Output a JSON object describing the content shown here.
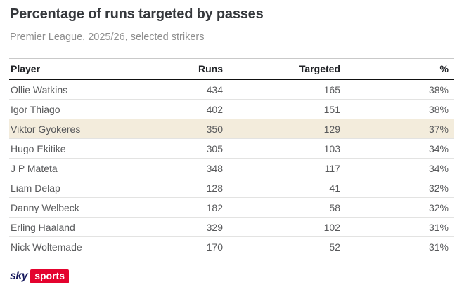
{
  "header": {
    "title": "Percentage of runs targeted by passes",
    "subtitle": "Premier League, 2025/26, selected strikers"
  },
  "chart_data": {
    "type": "table",
    "title": "Percentage of runs targeted by passes",
    "subtitle": "Premier League, 2025/26, selected strikers",
    "columns": [
      "Player",
      "Runs",
      "Targeted",
      "%"
    ],
    "rows": [
      {
        "player": "Ollie Watkins",
        "runs": 434,
        "targeted": 165,
        "pct": "38%",
        "highlighted": false
      },
      {
        "player": "Igor Thiago",
        "runs": 402,
        "targeted": 151,
        "pct": "38%",
        "highlighted": false
      },
      {
        "player": "Viktor Gyokeres",
        "runs": 350,
        "targeted": 129,
        "pct": "37%",
        "highlighted": true
      },
      {
        "player": "Hugo Ekitike",
        "runs": 305,
        "targeted": 103,
        "pct": "34%",
        "highlighted": false
      },
      {
        "player": "J P Mateta",
        "runs": 348,
        "targeted": 117,
        "pct": "34%",
        "highlighted": false
      },
      {
        "player": "Liam Delap",
        "runs": 128,
        "targeted": 41,
        "pct": "32%",
        "highlighted": false
      },
      {
        "player": "Danny Welbeck",
        "runs": 182,
        "targeted": 58,
        "pct": "32%",
        "highlighted": false
      },
      {
        "player": "Erling Haaland",
        "runs": 329,
        "targeted": 102,
        "pct": "31%",
        "highlighted": false
      },
      {
        "player": "Nick Woltemade",
        "runs": 170,
        "targeted": 52,
        "pct": "31%",
        "highlighted": false
      }
    ],
    "highlighted_row": "Viktor Gyokeres",
    "layout": {
      "numeric_alignment": "right",
      "header_rule": "thick-bottom"
    }
  },
  "footer": {
    "logo_sky": "sky",
    "logo_sports": "sports"
  },
  "colors": {
    "background": "#ffffff",
    "title_text": "#35383c",
    "subtitle_text": "#8e8e8e",
    "header_text": "#212327",
    "cell_text": "#58595b",
    "highlight_row_bg": "#f3ecdc",
    "top_rule": "#c9c9c9",
    "header_rule": "#111111",
    "row_rule": "#e3e3e2",
    "sky_navy": "#181b5e",
    "sports_red": "#e4032e",
    "sports_text": "#ffffff"
  }
}
